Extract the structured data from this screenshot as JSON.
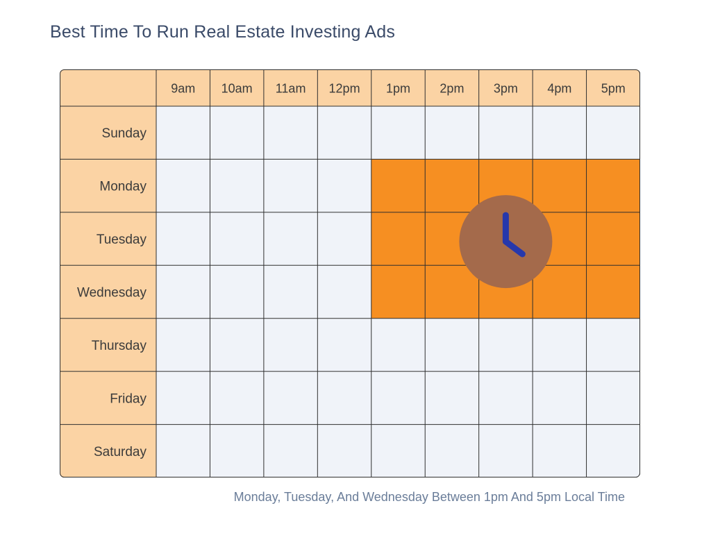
{
  "title": "Best Time To Run Real Estate Investing Ads",
  "caption": "Monday, Tuesday, And Wednesday Between 1pm And 5pm Local Time",
  "colors": {
    "header_bg": "#fbd3a4",
    "cell_bg": "#f0f3f9",
    "highlight": "#f68f22",
    "grid_line": "#2f2f2f",
    "clock_circle": "#a46a4b",
    "clock_hands": "#2638ab",
    "label_text": "#3b3b3b"
  },
  "icon": "clock-icon",
  "chart_data": {
    "type": "heatmap",
    "title": "Best Time To Run Real Estate Investing Ads",
    "subtitle": "Monday, Tuesday, And Wednesday Between 1pm And 5pm Local Time",
    "columns": [
      "9am",
      "10am",
      "11am",
      "12pm",
      "1pm",
      "2pm",
      "3pm",
      "4pm",
      "5pm"
    ],
    "rows": [
      "Sunday",
      "Monday",
      "Tuesday",
      "Wednesday",
      "Thursday",
      "Friday",
      "Saturday"
    ],
    "values": [
      [
        0,
        0,
        0,
        0,
        0,
        0,
        0,
        0,
        0
      ],
      [
        0,
        0,
        0,
        0,
        1,
        1,
        1,
        1,
        1
      ],
      [
        0,
        0,
        0,
        0,
        1,
        1,
        1,
        1,
        1
      ],
      [
        0,
        0,
        0,
        0,
        1,
        1,
        1,
        1,
        1
      ],
      [
        0,
        0,
        0,
        0,
        0,
        0,
        0,
        0,
        0
      ],
      [
        0,
        0,
        0,
        0,
        0,
        0,
        0,
        0,
        0
      ],
      [
        0,
        0,
        0,
        0,
        0,
        0,
        0,
        0,
        0
      ]
    ]
  }
}
